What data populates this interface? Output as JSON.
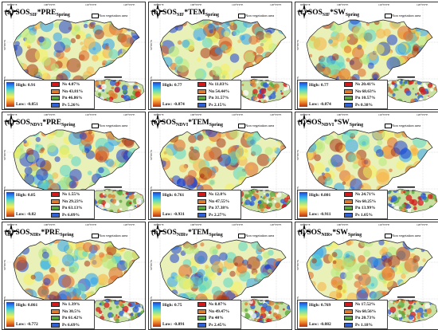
{
  "colors": {
    "ns": "#d7191c",
    "nn": "#e07b2e",
    "pn": "#58a83b",
    "ps": "#2c5fd8",
    "gradient": [
      "#1e3fd2",
      "#2aa0f0",
      "#56d6c8",
      "#b6e87a",
      "#f6ee5a",
      "#f8b040",
      "#e26522",
      "#a93414"
    ]
  },
  "common": {
    "non_vegetation": "Non vegetation area",
    "lon_ticks": [
      "90°0'0\"E",
      "100°0'0\"E",
      "110°0'0\"E",
      "120°0'0\"E"
    ],
    "lat_ticks": [
      "50°0'0\"N",
      "45°0'0\"N"
    ],
    "scale_ticks": [
      "0",
      "50",
      "100",
      "200"
    ]
  },
  "panels": [
    {
      "letter": "(a)",
      "base": "SOS",
      "sub": "SIF",
      "var": "PRE",
      "season": "Spring",
      "high": "High: 0.91",
      "low": "Low: -0.851",
      "ns": "Ns 4.07%",
      "nn": "Nn 43.81%",
      "pn": "Pn 46.86%",
      "ps": "Ps 5.26%"
    },
    {
      "letter": "(b)",
      "base": "SOS",
      "sub": "SIF",
      "var": "TEM",
      "season": "Spring",
      "high": "High: 0.77",
      "low": "Low: -0.874",
      "ns": "Ns 11.83%",
      "nn": "Nn 54.44%",
      "pn": "Pn 31.57%",
      "ps": "Ps 2.15%"
    },
    {
      "letter": "(c)",
      "base": "SOS",
      "sub": "SIF",
      "var": "SW",
      "season": "Spring",
      "high": "High: 0.77",
      "low": "Low: -0.874",
      "ns": "Ns 20.41%",
      "nn": "Nn 68.63%",
      "pn": "Pn 10.57%",
      "ps": "Ps 0.38%"
    },
    {
      "letter": "(d)",
      "base": "SOS",
      "sub": "NDVI",
      "var": "PRE",
      "season": "Spring",
      "high": "High: 0.85",
      "low": "Low: -0.82",
      "ns": "Ns 1.55%",
      "nn": "Nn 29.23%",
      "pn": "Pn 63.13%",
      "ps": "Ps 6.09%"
    },
    {
      "letter": "(e)",
      "base": "SOS",
      "sub": "NDVI",
      "var": "TEM",
      "season": "Spring",
      "high": "High: 0.761",
      "low": "Low: -0.931",
      "ns": "Ns 12.8%",
      "nn": "Nn 47.55%",
      "pn": "Pn 37.38%",
      "ps": "Ps 2.27%"
    },
    {
      "letter": "(f)",
      "base": "SOS",
      "sub": "NDVI",
      "var": "SW",
      "season": "Spring",
      "high": "High: 0.801",
      "low": "Low: -0.911",
      "ns": "Ns 24.71%",
      "nn": "Nn 60.25%",
      "pn": "Pn 13.99%",
      "ps": "Ps 1.05%"
    },
    {
      "letter": "(g)",
      "base": "SOS",
      "sub": "NIRv",
      "var": "PRE",
      "season": "Spring",
      "high": "High: 0.861",
      "low": "Low: -0.772",
      "ns": "Ns 1.39%",
      "nn": "Nn 30.5%",
      "pn": "Pn 61.42%",
      "ps": "Ps 6.69%"
    },
    {
      "letter": "(h)",
      "base": "SOS",
      "sub": "NIRv",
      "var": "TEM",
      "season": "Spring",
      "high": "High: 0.75",
      "low": "Low: -0.891",
      "ns": "Ns 8.07%",
      "nn": "Nn 49.47%",
      "pn": "Pn 40%",
      "ps": "Ps 2.45%"
    },
    {
      "letter": "(i)",
      "base": "SOS",
      "sub": "NIRv",
      "var": "SW",
      "season": "Spring",
      "high": "High: 0.769",
      "low": "Low: -0.882",
      "ns": "Ns 17.52%",
      "nn": "Nn 60.56%",
      "pn": "Pn 20.73%",
      "ps": "Ps 1.18%"
    }
  ]
}
